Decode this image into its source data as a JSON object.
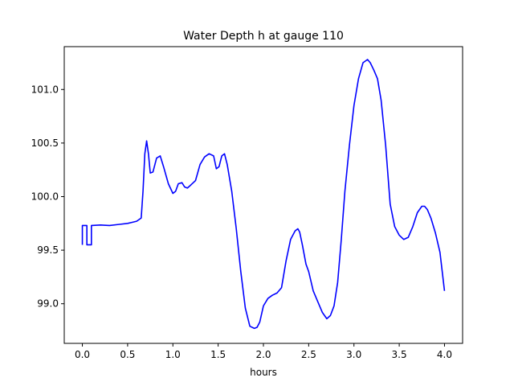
{
  "chart_data": {
    "type": "line",
    "title": "Water Depth h at gauge 110",
    "xlabel": "hours",
    "ylabel": "",
    "xlim": [
      -0.2,
      4.2
    ],
    "ylim": [
      98.63,
      101.4
    ],
    "xticks": [
      0.0,
      0.5,
      1.0,
      1.5,
      2.0,
      2.5,
      3.0,
      3.5,
      4.0
    ],
    "xtick_labels": [
      "0.0",
      "0.5",
      "1.0",
      "1.5",
      "2.0",
      "2.5",
      "3.0",
      "3.5",
      "4.0"
    ],
    "yticks": [
      99.0,
      99.5,
      100.0,
      100.5,
      101.0
    ],
    "ytick_labels": [
      "99.0",
      "99.5",
      "100.0",
      "100.5",
      "101.0"
    ],
    "grid": false,
    "legend": "none",
    "series": [
      {
        "color": "#0000ff",
        "x": [
          0.0,
          0.0,
          0.05,
          0.05,
          0.1,
          0.1,
          0.2,
          0.3,
          0.4,
          0.5,
          0.55,
          0.6,
          0.65,
          0.67,
          0.69,
          0.71,
          0.73,
          0.75,
          0.78,
          0.82,
          0.86,
          0.9,
          0.95,
          1.0,
          1.03,
          1.06,
          1.1,
          1.13,
          1.16,
          1.2,
          1.25,
          1.3,
          1.35,
          1.4,
          1.45,
          1.48,
          1.51,
          1.54,
          1.57,
          1.6,
          1.65,
          1.7,
          1.75,
          1.8,
          1.85,
          1.9,
          1.93,
          1.96,
          2.0,
          2.05,
          2.1,
          2.15,
          2.2,
          2.25,
          2.3,
          2.35,
          2.38,
          2.4,
          2.43,
          2.47,
          2.5,
          2.55,
          2.6,
          2.65,
          2.7,
          2.74,
          2.78,
          2.82,
          2.86,
          2.9,
          2.95,
          3.0,
          3.05,
          3.1,
          3.15,
          3.18,
          3.22,
          3.26,
          3.3,
          3.35,
          3.4,
          3.45,
          3.5,
          3.55,
          3.6,
          3.65,
          3.7,
          3.75,
          3.78,
          3.81,
          3.85,
          3.9,
          3.95,
          4.0
        ],
        "y": [
          99.55,
          99.73,
          99.73,
          99.55,
          99.55,
          99.73,
          99.735,
          99.73,
          99.74,
          99.75,
          99.76,
          99.77,
          99.8,
          100.05,
          100.4,
          100.52,
          100.4,
          100.22,
          100.23,
          100.36,
          100.38,
          100.27,
          100.12,
          100.03,
          100.05,
          100.12,
          100.13,
          100.09,
          100.08,
          100.11,
          100.15,
          100.3,
          100.37,
          100.4,
          100.38,
          100.26,
          100.28,
          100.38,
          100.4,
          100.3,
          100.05,
          99.7,
          99.3,
          98.96,
          98.79,
          98.77,
          98.78,
          98.83,
          98.98,
          99.05,
          99.08,
          99.1,
          99.15,
          99.4,
          99.6,
          99.68,
          99.7,
          99.67,
          99.55,
          99.37,
          99.3,
          99.12,
          99.02,
          98.92,
          98.86,
          98.89,
          98.98,
          99.2,
          99.6,
          100.05,
          100.48,
          100.85,
          101.1,
          101.25,
          101.28,
          101.25,
          101.18,
          101.1,
          100.9,
          100.48,
          99.93,
          99.72,
          99.64,
          99.6,
          99.62,
          99.72,
          99.85,
          99.91,
          99.91,
          99.88,
          99.8,
          99.66,
          99.48,
          99.12
        ]
      }
    ]
  }
}
